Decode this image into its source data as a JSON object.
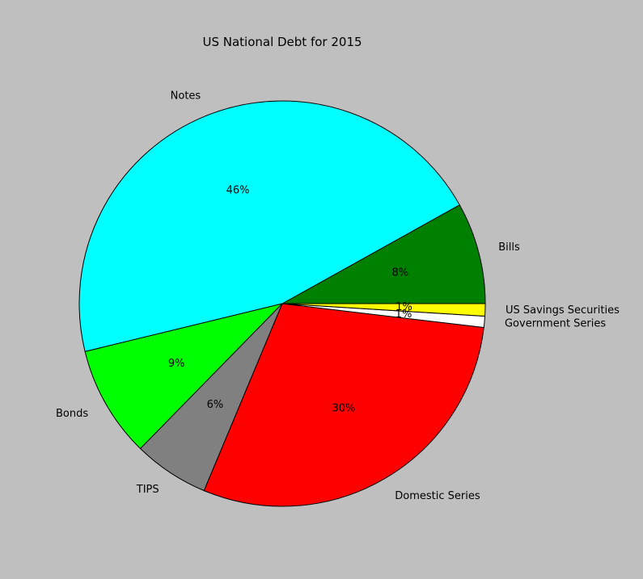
{
  "chart_data": {
    "type": "pie",
    "title": "US National Debt for 2015",
    "slices": [
      {
        "label": "Bills",
        "value": 8.2,
        "pct_label": "8%",
        "color": "#008000"
      },
      {
        "label": "Notes",
        "value": 46.3,
        "pct_label": "46%",
        "color": "#00ffff"
      },
      {
        "label": "Bonds",
        "value": 9.0,
        "pct_label": "9%",
        "color": "#00ff00"
      },
      {
        "label": "TIPS",
        "value": 6.1,
        "pct_label": "6%",
        "color": "#808080"
      },
      {
        "label": "Domestic Series",
        "value": 29.8,
        "pct_label": "30%",
        "color": "#ff0000"
      },
      {
        "label": "Government Series",
        "value": 0.9,
        "pct_label": "1%",
        "color": "#ffffff"
      },
      {
        "label": "US Savings Securities",
        "value": 1.0,
        "pct_label": "1%",
        "color": "#ffff00"
      }
    ],
    "start_angle_deg": 0,
    "direction": "counterclockwise"
  }
}
